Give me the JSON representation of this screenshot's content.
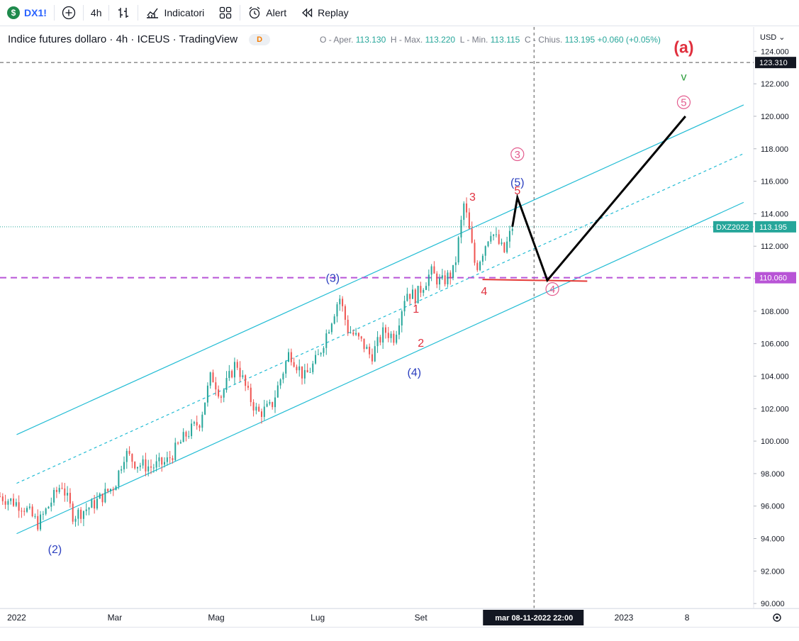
{
  "toolbar": {
    "symbol": "DX1!",
    "symbol_badge": "$",
    "interval": "4h",
    "indicators_label": "Indicatori",
    "alert_label": "Alert",
    "replay_label": "Replay"
  },
  "legend": {
    "title": "Indice futures dollaro · 4h · ICEUS · TradingView",
    "badge": "D",
    "o_label": "O - Aper.",
    "o": "113.130",
    "h_label": "H - Max.",
    "h": "113.220",
    "l_label": "L - Min.",
    "l": "113.115",
    "c_label": "C - Chius.",
    "c": "113.195",
    "change": "+0.060 (+0.05%)"
  },
  "price_axis": {
    "currency_label": "USD",
    "ticks": [
      "124.000",
      "122.000",
      "120.000",
      "118.000",
      "116.000",
      "114.000",
      "112.000",
      "110.000",
      "108.000",
      "106.000",
      "104.000",
      "102.000",
      "100.000",
      "98.000",
      "96.000",
      "94.000",
      "92.000",
      "90.000"
    ]
  },
  "price_badges": {
    "crosshair": "123.310",
    "symbol_tag": "DXZ2022",
    "last_price": "113.195",
    "level": "110.060"
  },
  "time_axis": {
    "labels": [
      "2022",
      "Mar",
      "Mag",
      "Lug",
      "Set",
      "2023",
      "8"
    ],
    "crosshair_label": "mar 08-11-2022   22:00"
  },
  "colors": {
    "up": "#26a69a",
    "down": "#ef5350",
    "channel": "#22bcd4",
    "level_line": "#b854d6",
    "wave_blue": "#2b3fbf",
    "wave_red": "#e0303e",
    "wave_pink": "#e35c8e",
    "projection": "#000000"
  },
  "chart_data": {
    "type": "candlestick",
    "y_unit": "USD",
    "ylim": [
      89.7,
      125.5
    ],
    "x_range": [
      "2021-12-22",
      "2023-03-20"
    ],
    "price_series": {
      "x": [
        "2021-12-22",
        "2022-01-05",
        "2022-01-14",
        "2022-01-28",
        "2022-02-04",
        "2022-02-15",
        "2022-03-01",
        "2022-03-07",
        "2022-03-14",
        "2022-03-23",
        "2022-04-01",
        "2022-04-13",
        "2022-04-21",
        "2022-04-28",
        "2022-05-04",
        "2022-05-13",
        "2022-05-20",
        "2022-05-26",
        "2022-06-03",
        "2022-06-14",
        "2022-06-23",
        "2022-07-01",
        "2022-07-14",
        "2022-07-19",
        "2022-07-28",
        "2022-08-02",
        "2022-08-10",
        "2022-08-16",
        "2022-08-23",
        "2022-08-29",
        "2022-09-07",
        "2022-09-13",
        "2022-09-21",
        "2022-09-27",
        "2022-10-04",
        "2022-10-13",
        "2022-10-21",
        "2022-10-26"
      ],
      "y": [
        96.6,
        96.0,
        94.9,
        97.4,
        95.4,
        96.0,
        97.3,
        99.3,
        98.6,
        98.4,
        98.7,
        100.4,
        101.2,
        104.1,
        102.8,
        104.9,
        102.9,
        101.7,
        102.1,
        105.5,
        103.9,
        105.1,
        108.9,
        106.9,
        106.0,
        105.2,
        106.8,
        106.4,
        109.2,
        108.9,
        110.4,
        109.7,
        110.5,
        114.7,
        110.6,
        113.0,
        111.6,
        113.2
      ]
    },
    "channel": {
      "upper": {
        "x": [
          "2022-01-01",
          "2023-03-14"
        ],
        "y": [
          100.4,
          120.7
        ]
      },
      "middle": {
        "x": [
          "2022-01-01",
          "2023-03-14"
        ],
        "y": [
          97.4,
          117.7
        ]
      },
      "lower": {
        "x": [
          "2022-01-01",
          "2023-03-14"
        ],
        "y": [
          94.3,
          114.7
        ]
      }
    },
    "levels": [
      110.06
    ],
    "projection": {
      "x": [
        "2022-10-26",
        "2022-10-29",
        "2022-11-16",
        "2023-02-07"
      ],
      "y": [
        113.2,
        115.0,
        109.9,
        120.0
      ]
    },
    "wave_labels": [
      {
        "text": "(2)",
        "x": "2022-01-24",
        "y": 93.1,
        "color": "wave_blue"
      },
      {
        "text": "(3)",
        "x": "2022-07-10",
        "y": 109.8,
        "color": "wave_blue"
      },
      {
        "text": "(4)",
        "x": "2022-08-28",
        "y": 104.0,
        "color": "wave_blue"
      },
      {
        "text": "(5)",
        "x": "2022-10-29",
        "y": 115.7,
        "color": "wave_blue"
      },
      {
        "text": "1",
        "x": "2022-08-29",
        "y": 107.9,
        "color": "wave_red"
      },
      {
        "text": "2",
        "x": "2022-09-01",
        "y": 105.8,
        "color": "wave_red"
      },
      {
        "text": "3",
        "x": "2022-10-02",
        "y": 114.8,
        "color": "wave_red"
      },
      {
        "text": "4",
        "x": "2022-10-09",
        "y": 109.0,
        "color": "wave_red"
      },
      {
        "text": "5",
        "x": "2022-10-29",
        "y": 115.2,
        "color": "wave_red"
      },
      {
        "text": "(a)",
        "x": "2023-02-06",
        "y": 123.9,
        "color": "wave_red"
      },
      {
        "text": "v",
        "x": "2023-02-06",
        "y": 122.2,
        "color": "green"
      },
      {
        "text": "3",
        "x": "2022-10-29",
        "y": 117.4,
        "color": "wave_pink",
        "circled": true
      },
      {
        "text": "5",
        "x": "2023-02-06",
        "y": 120.6,
        "color": "wave_pink",
        "circled": true
      },
      {
        "text": "4",
        "x": "2022-11-19",
        "y": 109.1,
        "color": "wave_pink",
        "circled": true
      }
    ]
  }
}
